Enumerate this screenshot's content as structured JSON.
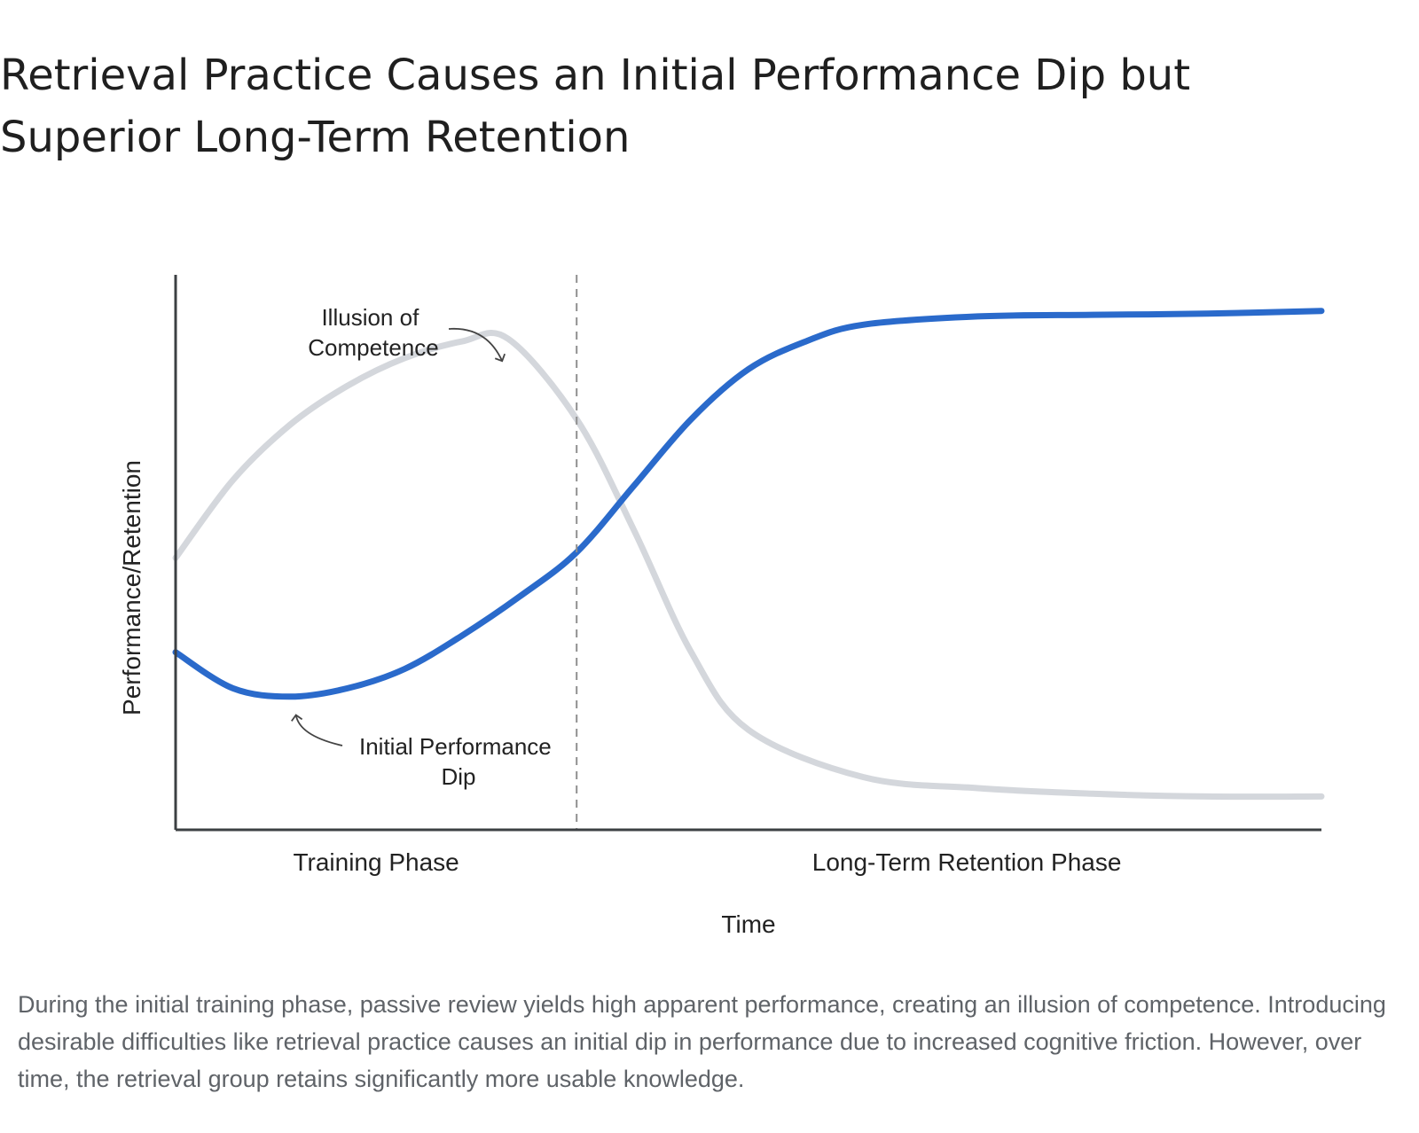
{
  "title": "Retrieval Practice Causes an Initial Performance Dip but Superior Long-Term Retention",
  "caption": "During the initial training phase, passive review yields high apparent performance, creating an illusion of competence. Introducing desirable difficulties like retrieval practice causes an initial dip in performance due to increased cognitive friction. However, over time, the retrieval group retains significantly more usable knowledge.",
  "chart_data": {
    "type": "line",
    "title": "",
    "xlabel": "Time",
    "ylabel": "Performance/Retention",
    "x_phase_labels": [
      "Training Phase",
      "Long-Term Retention Phase"
    ],
    "xlim": [
      0,
      10
    ],
    "ylim": [
      0,
      10
    ],
    "phase_boundary_x": 3.5,
    "grid": false,
    "legend": "none",
    "series": [
      {
        "color": "#d4d7dc",
        "points": [
          [
            0,
            4.9
          ],
          [
            0.5,
            6.3
          ],
          [
            1.0,
            7.3
          ],
          [
            1.5,
            8.0
          ],
          [
            2.0,
            8.5
          ],
          [
            2.5,
            8.8
          ],
          [
            2.9,
            8.85
          ],
          [
            3.5,
            7.4
          ],
          [
            4.0,
            5.4
          ],
          [
            4.5,
            3.2
          ],
          [
            5.0,
            1.8
          ],
          [
            6.0,
            0.95
          ],
          [
            7.0,
            0.75
          ],
          [
            8.0,
            0.65
          ],
          [
            9.0,
            0.6
          ],
          [
            10.0,
            0.6
          ]
        ]
      },
      {
        "color": "#2a6acb",
        "points": [
          [
            0,
            3.2
          ],
          [
            0.5,
            2.55
          ],
          [
            1.0,
            2.4
          ],
          [
            1.5,
            2.55
          ],
          [
            2.0,
            2.9
          ],
          [
            2.5,
            3.5
          ],
          [
            3.0,
            4.2
          ],
          [
            3.5,
            5.0
          ],
          [
            4.0,
            6.2
          ],
          [
            4.5,
            7.4
          ],
          [
            5.0,
            8.3
          ],
          [
            5.5,
            8.8
          ],
          [
            6.0,
            9.1
          ],
          [
            7.0,
            9.25
          ],
          [
            8.0,
            9.28
          ],
          [
            9.0,
            9.3
          ],
          [
            10.0,
            9.35
          ]
        ]
      }
    ],
    "annotations": [
      {
        "text_lines": [
          "Illusion of",
          "Competence"
        ],
        "target": [
          2.85,
          8.4
        ]
      },
      {
        "text_lines": [
          "Initial Performance",
          "Dip"
        ],
        "target": [
          1.05,
          2.1
        ]
      }
    ]
  }
}
